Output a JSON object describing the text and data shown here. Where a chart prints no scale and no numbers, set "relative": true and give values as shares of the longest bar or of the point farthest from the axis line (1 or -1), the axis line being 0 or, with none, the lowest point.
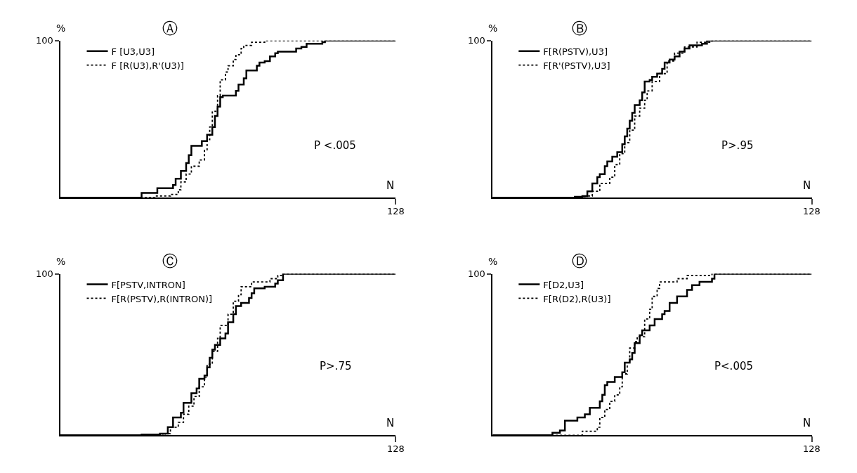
{
  "chart_data": [
    {
      "type": "step",
      "relative": true,
      "title": "Ⓐ",
      "xlabel": "N",
      "ylabel": "%",
      "legend": "top left",
      "categories": [
        null,
        null,
        null,
        null,
        null,
        null,
        null,
        null,
        null,
        null,
        null,
        null,
        null,
        null,
        null,
        null,
        null,
        null,
        null,
        null,
        null,
        null,
        null,
        null,
        null,
        null,
        null,
        null,
        null,
        null,
        null,
        null,
        null,
        null,
        null,
        null,
        null,
        null,
        null,
        null,
        null,
        null,
        null,
        null,
        null,
        null,
        null,
        null,
        null,
        null,
        null,
        null,
        null,
        null,
        null,
        null,
        null,
        null,
        null,
        null,
        null,
        null,
        null,
        null,
        null,
        null,
        null,
        null,
        null,
        null,
        null,
        null,
        null,
        null,
        null,
        null,
        null,
        null,
        null,
        null,
        null,
        null,
        null,
        null,
        null,
        null,
        null,
        null,
        null,
        null,
        null,
        null,
        null,
        null,
        null,
        null,
        null,
        null,
        null,
        null,
        null,
        null,
        null,
        null,
        null,
        null,
        null,
        null,
        null,
        null,
        null,
        null,
        null,
        null,
        null,
        null,
        null,
        null,
        null,
        null,
        null,
        null,
        null,
        null,
        null,
        null,
        null,
        null,
        null
      ],
      "annotations": [
        "P <.005",
        "100",
        "128"
      ],
      "series": [
        {
          "name": "F [U3,U3]",
          "color": "#000000",
          "line_style": "solid",
          "values": [
            0,
            0,
            0,
            0,
            0,
            0,
            0,
            0,
            0,
            0,
            0,
            0,
            0,
            0,
            0,
            0,
            0,
            0,
            0,
            0,
            0,
            0,
            0,
            0,
            0,
            0,
            0,
            0,
            0,
            0,
            0,
            0.03,
            0.03,
            0.03,
            0.03,
            0.03,
            0.03,
            0.06,
            0.06,
            0.06,
            0.06,
            0.06,
            0.06,
            0.08,
            0.12,
            0.12,
            0.17,
            0.17,
            0.22,
            0.27,
            0.33,
            0.33,
            0.33,
            0.33,
            0.36,
            0.36,
            0.4,
            0.4,
            0.45,
            0.52,
            0.58,
            0.64,
            0.65,
            0.65,
            0.65,
            0.65,
            0.65,
            0.68,
            0.72,
            0.72,
            0.76,
            0.81,
            0.81,
            0.81,
            0.81,
            0.84,
            0.86,
            0.86,
            0.87,
            0.87,
            0.9,
            0.9,
            0.92,
            0.93,
            0.93,
            0.93,
            0.93,
            0.93,
            0.93,
            0.93,
            0.95,
            0.95,
            0.96,
            0.96,
            0.98,
            0.98,
            0.98,
            0.98,
            0.98,
            0.98,
            0.99,
            1,
            1,
            1,
            1,
            1,
            1,
            1,
            1,
            1,
            1,
            1,
            1,
            1,
            1,
            1,
            1,
            1,
            1,
            1,
            1,
            1,
            1,
            1,
            1,
            1,
            1,
            1,
            1
          ]
        },
        {
          "name": "F [R(U3),R'(U3)]",
          "color": "#000000",
          "line_style": "dotted",
          "values": [
            0,
            0,
            0,
            0,
            0,
            0,
            0,
            0,
            0,
            0,
            0,
            0,
            0,
            0,
            0,
            0,
            0,
            0,
            0,
            0,
            0,
            0,
            0,
            0,
            0,
            0,
            0,
            0,
            0,
            0,
            0,
            0,
            0,
            0,
            0,
            0,
            0.01,
            0.01,
            0.01,
            0.01,
            0.01,
            0.01,
            0.02,
            0.02,
            0.02,
            0.05,
            0.1,
            0.1,
            0.15,
            0.15,
            0.2,
            0.2,
            0.2,
            0.24,
            0.24,
            0.3,
            0.37,
            0.45,
            0.55,
            0.55,
            0.65,
            0.75,
            0.75,
            0.8,
            0.84,
            0.84,
            0.88,
            0.91,
            0.91,
            0.95,
            0.97,
            0.97,
            0.97,
            0.99,
            0.99,
            0.99,
            0.99,
            0.99,
            1,
            1,
            1,
            1,
            1,
            1,
            1,
            1,
            1,
            1,
            1,
            1,
            1,
            1,
            1,
            1,
            1,
            1,
            1,
            1,
            1,
            1,
            1,
            1,
            1,
            1,
            1,
            1,
            1,
            1,
            1,
            1,
            1,
            1,
            1,
            1,
            1,
            1,
            1,
            1,
            1,
            1,
            1,
            1,
            1,
            1,
            1,
            1,
            1,
            1,
            1
          ]
        }
      ]
    },
    {
      "type": "step",
      "relative": true,
      "title": "Ⓑ",
      "xlabel": "N",
      "ylabel": "%",
      "legend": "top left",
      "categories": [
        null,
        null,
        null,
        null,
        null,
        null,
        null,
        null,
        null,
        null,
        null,
        null,
        null,
        null,
        null,
        null,
        null,
        null,
        null,
        null,
        null,
        null,
        null,
        null,
        null,
        null,
        null,
        null,
        null,
        null,
        null,
        null,
        null,
        null,
        null,
        null,
        null,
        null,
        null,
        null,
        null,
        null,
        null,
        null,
        null,
        null,
        null,
        null,
        null,
        null,
        null,
        null,
        null,
        null,
        null,
        null,
        null,
        null,
        null,
        null,
        null,
        null,
        null,
        null,
        null,
        null,
        null,
        null,
        null,
        null,
        null,
        null,
        null,
        null,
        null,
        null,
        null,
        null,
        null,
        null,
        null,
        null,
        null,
        null,
        null,
        null,
        null,
        null,
        null,
        null,
        null,
        null,
        null,
        null,
        null,
        null,
        null,
        null,
        null,
        null,
        null,
        null,
        null,
        null,
        null,
        null,
        null,
        null,
        null,
        null,
        null,
        null,
        null,
        null,
        null,
        null,
        null,
        null,
        null,
        null,
        null,
        null,
        null,
        null,
        null,
        null,
        null,
        null,
        null
      ],
      "annotations": [
        "P>.95",
        "100",
        "128"
      ],
      "series": [
        {
          "name": "F[R(PSTV),U3]",
          "color": "#000000",
          "line_style": "solid",
          "values": [
            0,
            0,
            0,
            0,
            0,
            0,
            0,
            0,
            0,
            0,
            0,
            0,
            0,
            0,
            0,
            0,
            0,
            0,
            0,
            0,
            0,
            0,
            0,
            0,
            0,
            0,
            0,
            0,
            0,
            0,
            0,
            0,
            0,
            0.005,
            0.005,
            0.005,
            0.01,
            0.01,
            0.04,
            0.04,
            0.09,
            0.09,
            0.13,
            0.15,
            0.15,
            0.2,
            0.23,
            0.23,
            0.26,
            0.26,
            0.29,
            0.29,
            0.34,
            0.39,
            0.44,
            0.49,
            0.54,
            0.59,
            0.59,
            0.62,
            0.67,
            0.74,
            0.74,
            0.75,
            0.77,
            0.77,
            0.79,
            0.79,
            0.82,
            0.86,
            0.86,
            0.88,
            0.88,
            0.9,
            0.9,
            0.93,
            0.93,
            0.95,
            0.95,
            0.97,
            0.97,
            0.97,
            0.97,
            0.97,
            0.98,
            0.98,
            1,
            1,
            1,
            1,
            1,
            1,
            1,
            1,
            1,
            1,
            1,
            1,
            1,
            1,
            1,
            1,
            1,
            1,
            1,
            1,
            1,
            1,
            1,
            1,
            1,
            1,
            1,
            1,
            1,
            1,
            1,
            1,
            1,
            1,
            1,
            1,
            1,
            1,
            1,
            1,
            1,
            1,
            1
          ]
        },
        {
          "name": "F[R'(PSTV),U3]",
          "color": "#000000",
          "line_style": "dotted",
          "values": [
            0,
            0,
            0,
            0,
            0,
            0,
            0,
            0,
            0,
            0,
            0,
            0,
            0,
            0,
            0,
            0,
            0,
            0,
            0,
            0,
            0,
            0,
            0,
            0,
            0,
            0,
            0,
            0,
            0,
            0,
            0,
            0,
            0,
            0,
            0,
            0,
            0,
            0.01,
            0.01,
            0.01,
            0.04,
            0.04,
            0.04,
            0.09,
            0.09,
            0.09,
            0.09,
            0.13,
            0.13,
            0.21,
            0.21,
            0.28,
            0.28,
            0.35,
            0.35,
            0.43,
            0.43,
            0.52,
            0.52,
            0.57,
            0.57,
            0.62,
            0.68,
            0.68,
            0.74,
            0.74,
            0.74,
            0.79,
            0.79,
            0.79,
            0.87,
            0.87,
            0.87,
            0.92,
            0.92,
            0.92,
            0.92,
            0.96,
            0.96,
            0.96,
            0.96,
            0.96,
            0.99,
            0.99,
            0.99,
            0.99,
            0.99,
            0.99,
            1,
            1,
            1,
            1,
            1,
            1,
            1,
            1,
            1,
            1,
            1,
            1,
            1,
            1,
            1,
            1,
            1,
            1,
            1,
            1,
            1,
            1,
            1,
            1,
            1,
            1,
            1,
            1,
            1,
            1,
            1,
            1,
            1,
            1,
            1,
            1,
            1,
            1,
            1,
            1,
            1
          ]
        }
      ]
    },
    {
      "type": "step",
      "relative": true,
      "title": "Ⓒ",
      "xlabel": "N",
      "ylabel": "%",
      "legend": "top left",
      "categories": [
        null,
        null,
        null,
        null,
        null,
        null,
        null,
        null,
        null,
        null,
        null,
        null,
        null,
        null,
        null,
        null,
        null,
        null,
        null,
        null,
        null,
        null,
        null,
        null,
        null,
        null,
        null,
        null,
        null,
        null,
        null,
        null,
        null,
        null,
        null,
        null,
        null,
        null,
        null,
        null,
        null,
        null,
        null,
        null,
        null,
        null,
        null,
        null,
        null,
        null,
        null,
        null,
        null,
        null,
        null,
        null,
        null,
        null,
        null,
        null,
        null,
        null,
        null,
        null,
        null,
        null,
        null,
        null,
        null,
        null,
        null,
        null,
        null,
        null,
        null,
        null,
        null,
        null,
        null,
        null,
        null,
        null,
        null,
        null,
        null,
        null,
        null,
        null,
        null,
        null,
        null,
        null,
        null,
        null,
        null,
        null,
        null,
        null,
        null,
        null,
        null,
        null,
        null,
        null,
        null,
        null,
        null,
        null,
        null,
        null,
        null,
        null,
        null,
        null,
        null,
        null,
        null,
        null,
        null,
        null,
        null,
        null,
        null,
        null,
        null,
        null,
        null,
        null,
        null
      ],
      "annotations": [
        "P>.75",
        "100",
        "128"
      ],
      "series": [
        {
          "name": "F[PSTV,INTRON]",
          "color": "#000000",
          "line_style": "solid",
          "values": [
            0,
            0,
            0,
            0,
            0,
            0,
            0,
            0,
            0,
            0,
            0,
            0,
            0,
            0,
            0,
            0,
            0,
            0,
            0,
            0,
            0,
            0,
            0,
            0,
            0,
            0,
            0,
            0,
            0,
            0,
            0,
            0.005,
            0.005,
            0.005,
            0.005,
            0.005,
            0.005,
            0.005,
            0.01,
            0.01,
            0.01,
            0.05,
            0.05,
            0.11,
            0.11,
            0.11,
            0.14,
            0.2,
            0.2,
            0.2,
            0.26,
            0.26,
            0.29,
            0.35,
            0.35,
            0.37,
            0.42,
            0.48,
            0.53,
            0.56,
            0.56,
            0.6,
            0.6,
            0.63,
            0.7,
            0.7,
            0.75,
            0.8,
            0.8,
            0.82,
            0.82,
            0.82,
            0.85,
            0.88,
            0.91,
            0.91,
            0.91,
            0.91,
            0.92,
            0.92,
            0.92,
            0.92,
            0.94,
            0.96,
            0.96,
            1,
            1,
            1,
            1,
            1,
            1,
            1,
            1,
            1,
            1,
            1,
            1,
            1,
            1,
            1,
            1,
            1,
            1,
            1,
            1,
            1,
            1,
            1,
            1,
            1,
            1,
            1,
            1,
            1,
            1,
            1,
            1,
            1,
            1,
            1,
            1,
            1,
            1,
            1,
            1,
            1,
            1,
            1,
            1
          ]
        },
        {
          "name": "F[R(PSTV),R(INTRON)]",
          "color": "#000000",
          "line_style": "dotted",
          "values": [
            0,
            0,
            0,
            0,
            0,
            0,
            0,
            0,
            0,
            0,
            0,
            0,
            0,
            0,
            0,
            0,
            0,
            0,
            0,
            0,
            0,
            0,
            0,
            0,
            0,
            0,
            0,
            0,
            0,
            0,
            0,
            0,
            0,
            0,
            0,
            0,
            0,
            0,
            0,
            0,
            0.01,
            0.01,
            0.05,
            0.05,
            0.05,
            0.08,
            0.08,
            0.13,
            0.13,
            0.18,
            0.18,
            0.24,
            0.24,
            0.3,
            0.3,
            0.36,
            0.44,
            0.44,
            0.52,
            0.52,
            0.6,
            0.68,
            0.68,
            0.68,
            0.75,
            0.75,
            0.83,
            0.83,
            0.87,
            0.92,
            0.92,
            0.92,
            0.92,
            0.95,
            0.95,
            0.95,
            0.95,
            0.95,
            0.95,
            0.95,
            0.97,
            0.97,
            0.97,
            0.99,
            0.99,
            1,
            1,
            1,
            1,
            1,
            1,
            1,
            1,
            1,
            1,
            1,
            1,
            1,
            1,
            1,
            1,
            1,
            1,
            1,
            1,
            1,
            1,
            1,
            1,
            1,
            1,
            1,
            1,
            1,
            1,
            1,
            1,
            1,
            1,
            1,
            1,
            1,
            1,
            1,
            1,
            1,
            1,
            1,
            1
          ]
        }
      ]
    },
    {
      "type": "step",
      "relative": true,
      "title": "Ⓓ",
      "xlabel": "N",
      "ylabel": "%",
      "legend": "top left",
      "categories": [
        null,
        null,
        null,
        null,
        null,
        null,
        null,
        null,
        null,
        null,
        null,
        null,
        null,
        null,
        null,
        null,
        null,
        null,
        null,
        null,
        null,
        null,
        null,
        null,
        null,
        null,
        null,
        null,
        null,
        null,
        null,
        null,
        null,
        null,
        null,
        null,
        null,
        null,
        null,
        null,
        null,
        null,
        null,
        null,
        null,
        null,
        null,
        null,
        null,
        null,
        null,
        null,
        null,
        null,
        null,
        null,
        null,
        null,
        null,
        null,
        null,
        null,
        null,
        null,
        null,
        null,
        null,
        null,
        null,
        null,
        null,
        null,
        null,
        null,
        null,
        null,
        null,
        null,
        null,
        null,
        null,
        null,
        null,
        null,
        null,
        null,
        null,
        null,
        null,
        null,
        null,
        null,
        null,
        null,
        null,
        null,
        null,
        null,
        null,
        null,
        null,
        null,
        null,
        null,
        null,
        null,
        null,
        null,
        null,
        null,
        null,
        null,
        null,
        null,
        null,
        null,
        null,
        null,
        null,
        null,
        null,
        null,
        null,
        null,
        null,
        null,
        null,
        null,
        null
      ],
      "annotations": [
        "P<.005",
        "100",
        "128"
      ],
      "series": [
        {
          "name": "F[D2,U3]",
          "color": "#000000",
          "line_style": "solid",
          "values": [
            0,
            0,
            0,
            0,
            0,
            0,
            0,
            0,
            0,
            0,
            0,
            0,
            0,
            0,
            0,
            0,
            0,
            0,
            0,
            0,
            0,
            0,
            0,
            0,
            0.015,
            0.015,
            0.015,
            0.03,
            0.03,
            0.09,
            0.09,
            0.09,
            0.09,
            0.09,
            0.11,
            0.11,
            0.11,
            0.13,
            0.13,
            0.17,
            0.17,
            0.17,
            0.17,
            0.21,
            0.25,
            0.31,
            0.33,
            0.33,
            0.33,
            0.36,
            0.36,
            0.36,
            0.39,
            0.45,
            0.45,
            0.47,
            0.51,
            0.57,
            0.57,
            0.62,
            0.65,
            0.65,
            0.65,
            0.68,
            0.68,
            0.72,
            0.72,
            0.72,
            0.75,
            0.77,
            0.77,
            0.82,
            0.82,
            0.82,
            0.86,
            0.86,
            0.86,
            0.86,
            0.9,
            0.9,
            0.93,
            0.93,
            0.93,
            0.95,
            0.95,
            0.95,
            0.95,
            0.95,
            0.97,
            1,
            1,
            1,
            1,
            1,
            1,
            1,
            1,
            1,
            1,
            1,
            1,
            1,
            1,
            1,
            1,
            1,
            1,
            1,
            1,
            1,
            1,
            1,
            1,
            1,
            1,
            1,
            1,
            1,
            1,
            1,
            1,
            1,
            1,
            1,
            1,
            1,
            1,
            1,
            1
          ]
        },
        {
          "name": "F[R(D2),R(U3)]",
          "color": "#000000",
          "line_style": "dotted",
          "values": [
            0,
            0,
            0,
            0,
            0,
            0,
            0,
            0,
            0,
            0,
            0,
            0,
            0,
            0,
            0,
            0,
            0,
            0,
            0,
            0,
            0,
            0,
            0,
            0,
            0,
            0,
            0,
            0,
            0,
            0,
            0,
            0,
            0,
            0,
            0,
            0,
            0.025,
            0.025,
            0.025,
            0.025,
            0.025,
            0.025,
            0.05,
            0.11,
            0.11,
            0.16,
            0.16,
            0.21,
            0.21,
            0.25,
            0.25,
            0.3,
            0.38,
            0.38,
            0.45,
            0.54,
            0.54,
            0.58,
            0.61,
            0.61,
            0.61,
            0.72,
            0.72,
            0.78,
            0.86,
            0.86,
            0.91,
            0.95,
            0.95,
            0.95,
            0.95,
            0.95,
            0.95,
            0.95,
            0.97,
            0.97,
            0.97,
            0.97,
            0.99,
            0.99,
            0.99,
            0.99,
            0.99,
            0.99,
            0.99,
            0.99,
            0.99,
            0.99,
            1,
            1,
            1,
            1,
            1,
            1,
            1,
            1,
            1,
            1,
            1,
            1,
            1,
            1,
            1,
            1,
            1,
            1,
            1,
            1,
            1,
            1,
            1,
            1,
            1,
            1,
            1,
            1,
            1,
            1,
            1,
            1,
            1,
            1,
            1,
            1,
            1,
            1,
            1,
            1,
            1
          ]
        }
      ]
    }
  ]
}
